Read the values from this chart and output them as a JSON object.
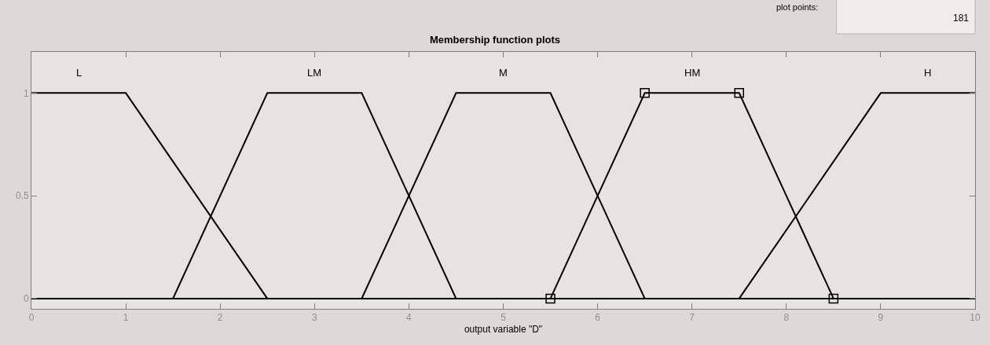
{
  "chart_data": {
    "type": "line",
    "title": "Membership function plots",
    "xlabel": "output variable \"D\"",
    "series": [
      {
        "name": "L",
        "color": "#000000",
        "x": [
          0,
          1,
          2.5,
          10
        ],
        "values": [
          1,
          1,
          0,
          0
        ]
      },
      {
        "name": "LM",
        "color": "#000000",
        "x": [
          0,
          1.5,
          2.5,
          3.5,
          4.5,
          10
        ],
        "values": [
          0,
          0,
          1,
          1,
          0,
          0
        ]
      },
      {
        "name": "M",
        "color": "#000000",
        "x": [
          0,
          3.5,
          4.5,
          5.5,
          6.5,
          10
        ],
        "values": [
          0,
          0,
          1,
          1,
          0,
          0
        ]
      },
      {
        "name": "HM",
        "color": "#000000",
        "x": [
          5.5,
          6.5,
          7.5,
          8.5
        ],
        "values": [
          0,
          1,
          1,
          0
        ],
        "marker": "square"
      },
      {
        "name": "H",
        "color": "#000000",
        "x": [
          0,
          7.5,
          9,
          10
        ],
        "values": [
          0,
          0,
          1,
          1
        ]
      }
    ],
    "xlim": [
      0,
      10
    ],
    "xticks": [
      0,
      1,
      2,
      3,
      4,
      5,
      6,
      7,
      8,
      9,
      10
    ],
    "ylim": [
      -0.05,
      1.2
    ],
    "yticks": [
      0,
      0.5,
      1
    ],
    "grid": false,
    "legend": false,
    "line_style": "solid",
    "annotations": [
      "plot points:",
      "181"
    ]
  }
}
